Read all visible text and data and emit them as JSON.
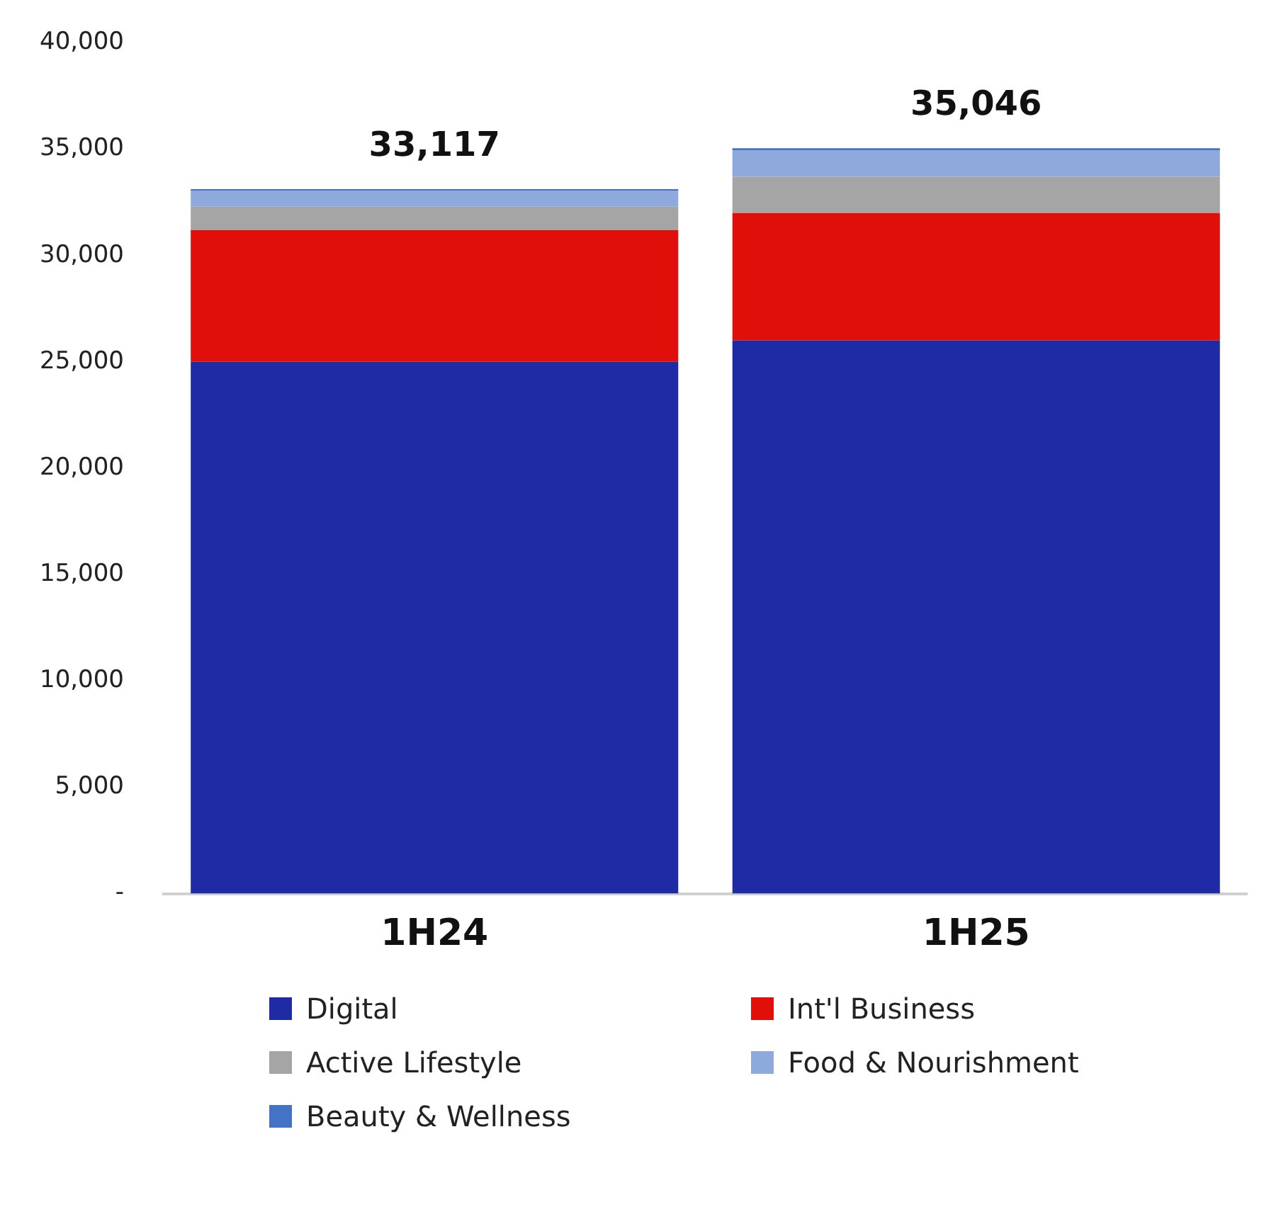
{
  "chart_data": {
    "type": "bar",
    "stacked": true,
    "categories": [
      "1H24",
      "1H25"
    ],
    "series": [
      {
        "name": "Digital",
        "color": "#1f2ba5",
        "values": [
          25000,
          26000
        ]
      },
      {
        "name": "Int'l Business",
        "color": "#e00f0a",
        "values": [
          6200,
          6000
        ]
      },
      {
        "name": "Active Lifestyle",
        "color": "#a5a5a5",
        "values": [
          1100,
          1700
        ]
      },
      {
        "name": "Food & Nourishment",
        "color": "#8eaadc",
        "values": [
          750,
          1250
        ]
      },
      {
        "name": "Beauty & Wellness",
        "color": "#4472c4",
        "values": [
          67,
          96
        ]
      }
    ],
    "totals": [
      "33,117",
      "35,046"
    ],
    "ylim": [
      0,
      40000
    ],
    "yticks": [
      {
        "value": 0,
        "label": "-"
      },
      {
        "value": 5000,
        "label": "5,000"
      },
      {
        "value": 10000,
        "label": "10,000"
      },
      {
        "value": 15000,
        "label": "15,000"
      },
      {
        "value": 20000,
        "label": "20,000"
      },
      {
        "value": 25000,
        "label": "25,000"
      },
      {
        "value": 30000,
        "label": "30,000"
      },
      {
        "value": 35000,
        "label": "35,000"
      },
      {
        "value": 40000,
        "label": "40,000"
      }
    ],
    "grid": false,
    "legend": "bottom"
  }
}
